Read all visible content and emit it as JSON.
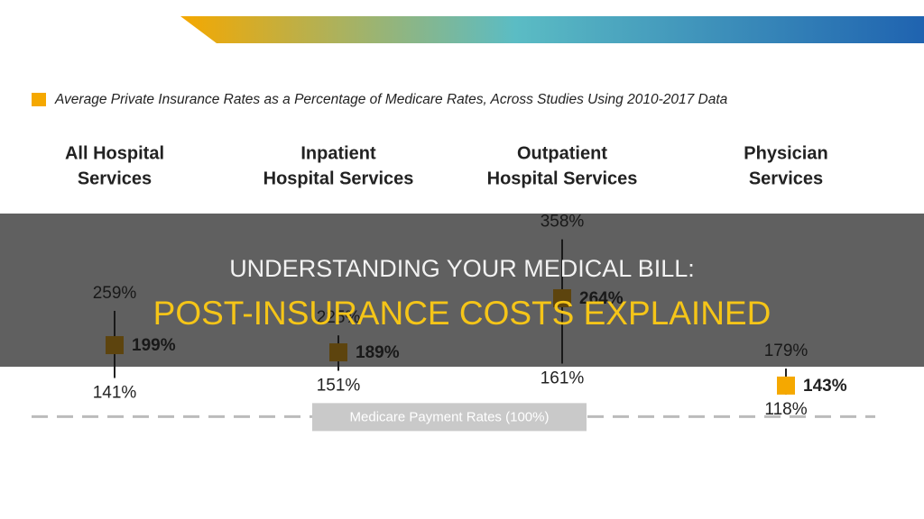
{
  "chart_data": {
    "type": "range",
    "title": "Average Private Insurance Rates as a Percentage of Medicare Rates, Across Studies Using 2010-2017 Data",
    "categories": [
      [
        "All Hospital",
        "Services"
      ],
      [
        "Inpatient",
        "Hospital Services"
      ],
      [
        "Outpatient",
        "Hospital Services"
      ],
      [
        "Physician",
        "Services"
      ]
    ],
    "values": [
      199,
      189,
      264,
      143
    ],
    "value_labels": [
      "199%",
      "189%",
      "264%",
      "143%"
    ],
    "low": [
      141,
      151,
      161,
      118
    ],
    "low_labels": [
      "141%",
      "151%",
      "161%",
      "118%"
    ],
    "high": [
      259,
      225,
      358,
      179
    ],
    "high_labels": [
      "259%",
      "225%",
      "358%",
      "179%"
    ],
    "color": "#f5a800",
    "ylim": [
      78,
      390
    ],
    "reference": {
      "value": 100,
      "label": "Medicare Payment Rates (100%)"
    }
  },
  "overlay": {
    "line1": "UNDERSTANDING YOUR MEDICAL BILL:",
    "line2": "POST-INSURANCE COSTS EXPLAINED"
  }
}
